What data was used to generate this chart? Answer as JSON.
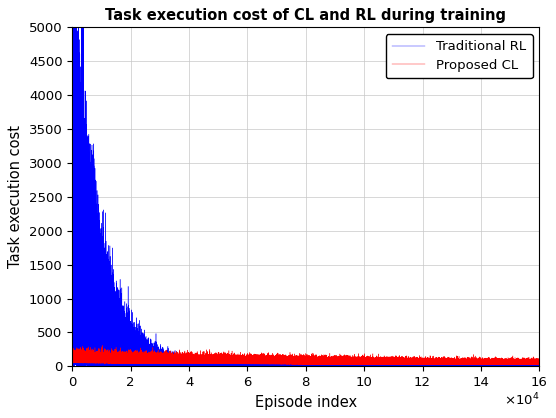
{
  "title": "Task execution cost of CL and RL during training",
  "xlabel": "Episode index",
  "ylabel": "Task execution cost",
  "xlim": [
    0,
    160000
  ],
  "ylim": [
    0,
    5000
  ],
  "xticks": [
    0,
    20000,
    40000,
    60000,
    80000,
    100000,
    120000,
    140000,
    160000
  ],
  "xtick_labels": [
    "0",
    "2",
    "4",
    "6",
    "8",
    "10",
    "12",
    "14",
    "16"
  ],
  "yticks": [
    0,
    500,
    1000,
    1500,
    2000,
    2500,
    3000,
    3500,
    4000,
    4500,
    5000
  ],
  "rl_color": "#0000FF",
  "cl_color": "#FF0000",
  "legend_labels": [
    "Traditional RL",
    "Proposed CL"
  ],
  "n_episodes": 160000,
  "figsize": [
    5.56,
    4.18
  ],
  "dpi": 100,
  "linewidth": 0.3,
  "background_color": "#FFFFFF",
  "grid_color": "#C8C8C8",
  "grid_linewidth": 0.5
}
